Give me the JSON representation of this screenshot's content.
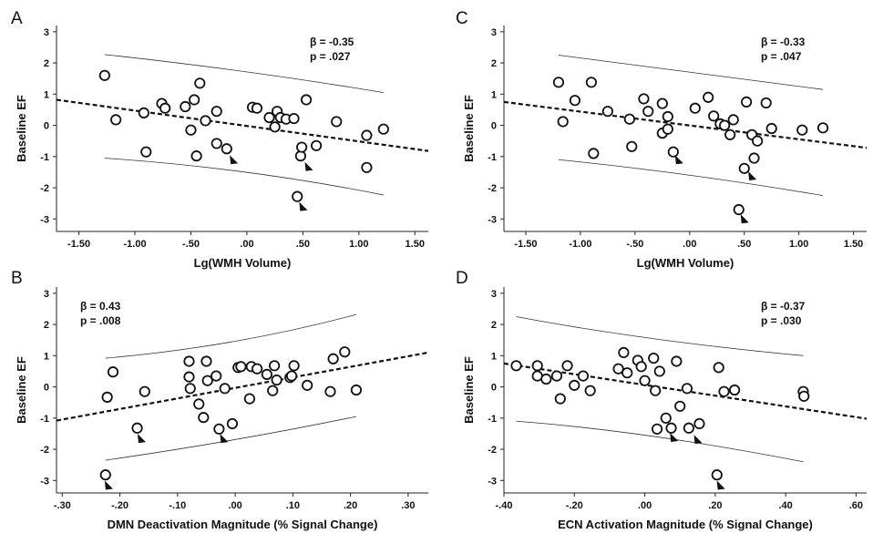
{
  "chart_data": [
    {
      "type": "scatter",
      "panel_label": "A",
      "xlabel": "Lg(WMH Volume)",
      "ylabel": "Baseline EF",
      "xlim": [
        -1.7,
        1.62
      ],
      "ylim": [
        -3.4,
        3.2
      ],
      "xticks": [
        -1.5,
        -1.0,
        -0.5,
        0.0,
        0.5,
        1.0,
        1.5
      ],
      "xtick_labels": [
        "-1.50",
        "-1.00",
        "-.50",
        ".00",
        ".50",
        "1.00",
        "1.50"
      ],
      "yticks": [
        -3,
        -2,
        -1,
        0,
        1,
        2,
        3
      ],
      "ytick_labels": [
        "-3",
        "-2",
        "-1",
        "0",
        "1",
        "2",
        "3"
      ],
      "beta_text": "β = -0.35",
      "p_text": "p = .027",
      "points": [
        {
          "x": -1.27,
          "y": 1.6
        },
        {
          "x": -1.17,
          "y": 0.18
        },
        {
          "x": -0.92,
          "y": 0.4
        },
        {
          "x": -0.9,
          "y": -0.85
        },
        {
          "x": -0.76,
          "y": 0.7
        },
        {
          "x": -0.73,
          "y": 0.55
        },
        {
          "x": -0.55,
          "y": 0.6
        },
        {
          "x": -0.5,
          "y": -0.15
        },
        {
          "x": -0.47,
          "y": 0.82
        },
        {
          "x": -0.45,
          "y": -0.98
        },
        {
          "x": -0.42,
          "y": 1.35
        },
        {
          "x": -0.37,
          "y": 0.15
        },
        {
          "x": -0.27,
          "y": 0.45
        },
        {
          "x": -0.27,
          "y": -0.58
        },
        {
          "x": -0.18,
          "y": -0.75
        },
        {
          "x": 0.05,
          "y": 0.58
        },
        {
          "x": 0.09,
          "y": 0.55
        },
        {
          "x": 0.2,
          "y": 0.25
        },
        {
          "x": 0.25,
          "y": -0.05
        },
        {
          "x": 0.27,
          "y": 0.45
        },
        {
          "x": 0.3,
          "y": 0.25
        },
        {
          "x": 0.35,
          "y": 0.2
        },
        {
          "x": 0.42,
          "y": 0.22
        },
        {
          "x": 0.45,
          "y": -2.28
        },
        {
          "x": 0.48,
          "y": -0.98
        },
        {
          "x": 0.49,
          "y": -0.7
        },
        {
          "x": 0.53,
          "y": 0.82
        },
        {
          "x": 0.62,
          "y": -0.65
        },
        {
          "x": 0.8,
          "y": 0.12
        },
        {
          "x": 1.07,
          "y": -0.32
        },
        {
          "x": 1.07,
          "y": -1.35
        },
        {
          "x": 1.22,
          "y": -0.12
        }
      ],
      "arrows": [
        {
          "x": -0.12,
          "y": -1.1
        },
        {
          "x": 0.55,
          "y": -1.32
        },
        {
          "x": 0.5,
          "y": -2.6
        }
      ],
      "fit_line": [
        {
          "x": -1.7,
          "y": 0.82
        },
        {
          "x": 1.62,
          "y": -0.82
        }
      ],
      "ci_upper": [
        {
          "x": -1.27,
          "y": 2.27
        },
        {
          "x": 0.0,
          "y": 1.72
        },
        {
          "x": 1.22,
          "y": 1.05
        }
      ],
      "ci_lower": [
        {
          "x": -1.27,
          "y": -1.05
        },
        {
          "x": 0.0,
          "y": -1.5
        },
        {
          "x": 1.22,
          "y": -2.23
        }
      ]
    },
    {
      "type": "scatter",
      "panel_label": "C",
      "xlabel": "Lg(WMH Volume)",
      "ylabel": "Baseline EF",
      "xlim": [
        -1.7,
        1.62
      ],
      "ylim": [
        -3.4,
        3.2
      ],
      "xticks": [
        -1.5,
        -1.0,
        -0.5,
        0.0,
        0.5,
        1.0,
        1.5
      ],
      "xtick_labels": [
        "-1.50",
        "-1.00",
        "-.50",
        ".00",
        ".50",
        "1.00",
        "1.50"
      ],
      "yticks": [
        -3,
        -2,
        -1,
        0,
        1,
        2,
        3
      ],
      "ytick_labels": [
        "-3",
        "-2",
        "-1",
        "0",
        "1",
        "2",
        "3"
      ],
      "beta_text": "β = -0.33",
      "p_text": "p = .047",
      "points": [
        {
          "x": -1.2,
          "y": 1.38
        },
        {
          "x": -1.16,
          "y": 0.12
        },
        {
          "x": -1.05,
          "y": 0.8
        },
        {
          "x": -0.9,
          "y": 1.38
        },
        {
          "x": -0.88,
          "y": -0.9
        },
        {
          "x": -0.75,
          "y": 0.45
        },
        {
          "x": -0.55,
          "y": 0.2
        },
        {
          "x": -0.53,
          "y": -0.68
        },
        {
          "x": -0.42,
          "y": 0.85
        },
        {
          "x": -0.38,
          "y": 0.45
        },
        {
          "x": -0.25,
          "y": 0.7
        },
        {
          "x": -0.25,
          "y": -0.25
        },
        {
          "x": -0.2,
          "y": 0.28
        },
        {
          "x": -0.2,
          "y": -0.12
        },
        {
          "x": -0.15,
          "y": -0.85
        },
        {
          "x": 0.05,
          "y": 0.55
        },
        {
          "x": 0.17,
          "y": 0.9
        },
        {
          "x": 0.22,
          "y": 0.3
        },
        {
          "x": 0.28,
          "y": 0.05
        },
        {
          "x": 0.32,
          "y": 0.0
        },
        {
          "x": 0.37,
          "y": -0.3
        },
        {
          "x": 0.4,
          "y": 0.18
        },
        {
          "x": 0.45,
          "y": -2.7
        },
        {
          "x": 0.5,
          "y": -1.38
        },
        {
          "x": 0.52,
          "y": 0.75
        },
        {
          "x": 0.57,
          "y": -0.3
        },
        {
          "x": 0.59,
          "y": -1.05
        },
        {
          "x": 0.62,
          "y": -0.5
        },
        {
          "x": 0.7,
          "y": 0.72
        },
        {
          "x": 0.75,
          "y": -0.1
        },
        {
          "x": 1.03,
          "y": -0.15
        },
        {
          "x": 1.22,
          "y": -0.08
        }
      ],
      "arrows": [
        {
          "x": -0.1,
          "y": -1.1
        },
        {
          "x": 0.57,
          "y": -1.62
        },
        {
          "x": 0.5,
          "y": -3.0
        }
      ],
      "fit_line": [
        {
          "x": -1.7,
          "y": 0.75
        },
        {
          "x": 1.62,
          "y": -0.72
        }
      ],
      "ci_upper": [
        {
          "x": -1.2,
          "y": 2.25
        },
        {
          "x": 0.0,
          "y": 1.7
        },
        {
          "x": 1.22,
          "y": 1.15
        }
      ],
      "ci_lower": [
        {
          "x": -1.2,
          "y": -1.1
        },
        {
          "x": 0.0,
          "y": -1.6
        },
        {
          "x": 1.22,
          "y": -2.25
        }
      ]
    },
    {
      "type": "scatter",
      "panel_label": "B",
      "xlabel": "DMN Deactivation Magnitude (% Signal Change)",
      "ylabel": "Baseline EF",
      "xlim": [
        -0.31,
        0.335
      ],
      "ylim": [
        -3.4,
        3.2
      ],
      "xticks": [
        -0.3,
        -0.2,
        -0.1,
        0.0,
        0.1,
        0.2,
        0.3
      ],
      "xtick_labels": [
        "-.30",
        "-.20",
        "-.10",
        ".00",
        ".10",
        ".20",
        ".30"
      ],
      "yticks": [
        -3,
        -2,
        -1,
        0,
        1,
        2,
        3
      ],
      "ytick_labels": [
        "-3",
        "-2",
        "-1",
        "0",
        "1",
        "2",
        "3"
      ],
      "beta_text": "β = 0.43",
      "p_text": "p = .008",
      "points": [
        {
          "x": -0.225,
          "y": -2.82
        },
        {
          "x": -0.222,
          "y": -0.33
        },
        {
          "x": -0.212,
          "y": 0.48
        },
        {
          "x": -0.17,
          "y": -1.32
        },
        {
          "x": -0.157,
          "y": -0.15
        },
        {
          "x": -0.08,
          "y": 0.82
        },
        {
          "x": -0.08,
          "y": 0.32
        },
        {
          "x": -0.078,
          "y": -0.05
        },
        {
          "x": -0.063,
          "y": -0.55
        },
        {
          "x": -0.055,
          "y": -0.98
        },
        {
          "x": -0.05,
          "y": 0.82
        },
        {
          "x": -0.048,
          "y": 0.2
        },
        {
          "x": -0.033,
          "y": 0.35
        },
        {
          "x": -0.028,
          "y": -1.35
        },
        {
          "x": -0.018,
          "y": -0.05
        },
        {
          "x": -0.005,
          "y": -1.18
        },
        {
          "x": 0.005,
          "y": 0.62
        },
        {
          "x": 0.01,
          "y": 0.65
        },
        {
          "x": 0.025,
          "y": -0.38
        },
        {
          "x": 0.028,
          "y": 0.65
        },
        {
          "x": 0.038,
          "y": 0.58
        },
        {
          "x": 0.055,
          "y": 0.4
        },
        {
          "x": 0.065,
          "y": -0.12
        },
        {
          "x": 0.068,
          "y": 0.68
        },
        {
          "x": 0.072,
          "y": 0.22
        },
        {
          "x": 0.095,
          "y": 0.3
        },
        {
          "x": 0.098,
          "y": 0.35
        },
        {
          "x": 0.102,
          "y": 0.68
        },
        {
          "x": 0.125,
          "y": 0.05
        },
        {
          "x": 0.165,
          "y": -0.15
        },
        {
          "x": 0.17,
          "y": 0.9
        },
        {
          "x": 0.19,
          "y": 1.12
        },
        {
          "x": 0.21,
          "y": -0.1
        }
      ],
      "arrows": [
        {
          "x": -0.163,
          "y": -1.65
        },
        {
          "x": -0.02,
          "y": -1.65
        },
        {
          "x": -0.22,
          "y": -3.15
        }
      ],
      "fit_line": [
        {
          "x": -0.31,
          "y": -1.08
        },
        {
          "x": 0.335,
          "y": 1.1
        }
      ],
      "ci_upper": [
        {
          "x": -0.225,
          "y": 0.92
        },
        {
          "x": 0.0,
          "y": 1.45
        },
        {
          "x": 0.21,
          "y": 2.32
        }
      ],
      "ci_lower": [
        {
          "x": -0.225,
          "y": -2.35
        },
        {
          "x": 0.0,
          "y": -1.7
        },
        {
          "x": 0.21,
          "y": -0.95
        }
      ]
    },
    {
      "type": "scatter",
      "panel_label": "D",
      "xlabel": "ECN Activation Magnitude (% Signal Change)",
      "ylabel": "Baseline EF",
      "xlim": [
        -0.4,
        0.63
      ],
      "ylim": [
        -3.4,
        3.2
      ],
      "xticks": [
        -0.4,
        -0.2,
        0.0,
        0.2,
        0.4,
        0.6
      ],
      "xtick_labels": [
        "-.40",
        "-.20",
        ".00",
        ".20",
        ".40",
        ".60"
      ],
      "yticks": [
        -3,
        -2,
        -1,
        0,
        1,
        2,
        3
      ],
      "ytick_labels": [
        "-3",
        "-2",
        "-1",
        "0",
        "1",
        "2",
        "3"
      ],
      "beta_text": "β = -0.37",
      "p_text": "p = .030",
      "points": [
        {
          "x": -0.365,
          "y": 0.68
        },
        {
          "x": -0.305,
          "y": 0.68
        },
        {
          "x": -0.305,
          "y": 0.35
        },
        {
          "x": -0.28,
          "y": 0.25
        },
        {
          "x": -0.25,
          "y": 0.35
        },
        {
          "x": -0.24,
          "y": -0.38
        },
        {
          "x": -0.22,
          "y": 0.68
        },
        {
          "x": -0.2,
          "y": 0.05
        },
        {
          "x": -0.175,
          "y": 0.35
        },
        {
          "x": -0.155,
          "y": -0.12
        },
        {
          "x": -0.075,
          "y": 0.58
        },
        {
          "x": -0.06,
          "y": 1.1
        },
        {
          "x": -0.05,
          "y": 0.45
        },
        {
          "x": -0.02,
          "y": 0.85
        },
        {
          "x": -0.01,
          "y": 0.65
        },
        {
          "x": 0.0,
          "y": 0.2
        },
        {
          "x": 0.025,
          "y": 0.92
        },
        {
          "x": 0.03,
          "y": -0.12
        },
        {
          "x": 0.035,
          "y": -1.35
        },
        {
          "x": 0.042,
          "y": 0.5
        },
        {
          "x": 0.06,
          "y": -1.0
        },
        {
          "x": 0.075,
          "y": -1.32
        },
        {
          "x": 0.09,
          "y": 0.82
        },
        {
          "x": 0.1,
          "y": -0.62
        },
        {
          "x": 0.12,
          "y": -0.05
        },
        {
          "x": 0.125,
          "y": -1.32
        },
        {
          "x": 0.155,
          "y": -1.18
        },
        {
          "x": 0.205,
          "y": -2.82
        },
        {
          "x": 0.21,
          "y": 0.62
        },
        {
          "x": 0.225,
          "y": -0.15
        },
        {
          "x": 0.255,
          "y": -0.1
        },
        {
          "x": 0.45,
          "y": -0.15
        },
        {
          "x": 0.452,
          "y": -0.3
        }
      ],
      "arrows": [
        {
          "x": 0.082,
          "y": -1.62
        },
        {
          "x": 0.15,
          "y": -1.68
        },
        {
          "x": 0.215,
          "y": -3.15
        }
      ],
      "fit_line": [
        {
          "x": -0.4,
          "y": 0.75
        },
        {
          "x": 0.63,
          "y": -1.02
        }
      ],
      "ci_upper": [
        {
          "x": -0.365,
          "y": 2.25
        },
        {
          "x": 0.0,
          "y": 1.55
        },
        {
          "x": 0.45,
          "y": 1.0
        }
      ],
      "ci_lower": [
        {
          "x": -0.365,
          "y": -1.1
        },
        {
          "x": 0.0,
          "y": -1.58
        },
        {
          "x": 0.45,
          "y": -2.4
        }
      ]
    }
  ]
}
